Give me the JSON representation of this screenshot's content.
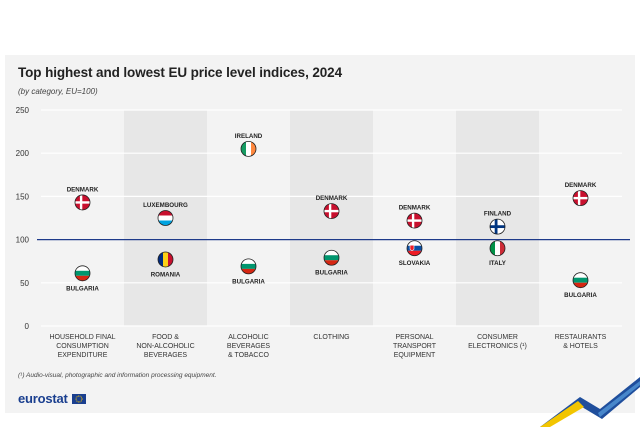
{
  "chart_data": {
    "type": "scatter",
    "title": "Top highest and lowest EU price level indices, 2024",
    "subtitle": "(by category, EU=100)",
    "ylim": [
      0,
      250
    ],
    "yticks": [
      0,
      50,
      100,
      150,
      200,
      250
    ],
    "reference_line": 100,
    "categories": [
      {
        "lines": [
          "HOUSEHOLD FINAL",
          "CONSUMPTION",
          "EXPENDITURE"
        ]
      },
      {
        "lines": [
          "FOOD &",
          "NON-ALCOHOLIC",
          "BEVERAGES"
        ]
      },
      {
        "lines": [
          "ALCOHOLIC",
          "BEVERAGES",
          "& TOBACCO"
        ]
      },
      {
        "lines": [
          "CLOTHING"
        ]
      },
      {
        "lines": [
          "PERSONAL",
          "TRANSPORT",
          "EQUIPMENT"
        ]
      },
      {
        "lines": [
          "CONSUMER",
          "ELECTRONICS (¹)"
        ]
      },
      {
        "lines": [
          "RESTAURANTS",
          "& HOTELS"
        ]
      }
    ],
    "series": [
      {
        "name": "highest",
        "points": [
          {
            "country": "DENMARK",
            "flag": "denmark",
            "value": 143
          },
          {
            "country": "LUXEMBOURG",
            "flag": "luxembourg",
            "value": 125
          },
          {
            "country": "IRELAND",
            "flag": "ireland",
            "value": 205
          },
          {
            "country": "DENMARK",
            "flag": "denmark",
            "value": 133
          },
          {
            "country": "DENMARK",
            "flag": "denmark",
            "value": 122
          },
          {
            "country": "FINLAND",
            "flag": "finland",
            "value": 115
          },
          {
            "country": "DENMARK",
            "flag": "denmark",
            "value": 148
          }
        ]
      },
      {
        "name": "lowest",
        "points": [
          {
            "country": "BULGARIA",
            "flag": "bulgaria",
            "value": 61
          },
          {
            "country": "ROMANIA",
            "flag": "romania",
            "value": 77
          },
          {
            "country": "BULGARIA",
            "flag": "bulgaria",
            "value": 69
          },
          {
            "country": "BULGARIA",
            "flag": "bulgaria",
            "value": 79
          },
          {
            "country": "SLOVAKIA",
            "flag": "slovakia",
            "value": 90
          },
          {
            "country": "ITALY",
            "flag": "italy",
            "value": 90
          },
          {
            "country": "BULGARIA",
            "flag": "bulgaria",
            "value": 53
          }
        ]
      }
    ]
  },
  "footnote": "(¹) Audio-visual, photographic and information processing equipment.",
  "branding": {
    "logo_text": "eurostat"
  },
  "colors": {
    "reference_line": "#1e3a8a",
    "band": "#e7e7e7",
    "denmark_red": "#c8102e",
    "luxembourg_blue": "#00a3e0",
    "ireland_green": "#169b62",
    "ireland_orange": "#ff883e",
    "romania_blue": "#002b7f",
    "romania_yellow": "#fcd116",
    "bulgaria_green": "#00966e",
    "bulgaria_red": "#d62612",
    "finland_blue": "#003580",
    "slovakia_blue": "#0b4ea2",
    "slovakia_red": "#ee1c25",
    "italy_green": "#009246",
    "italy_red": "#ce2b37"
  }
}
